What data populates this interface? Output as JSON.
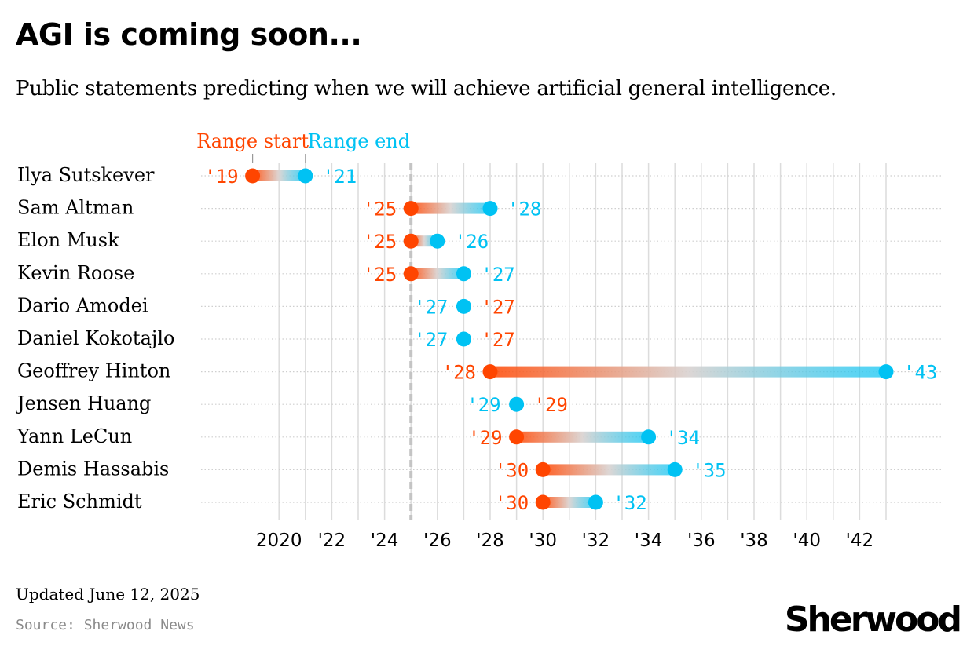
{
  "title": "AGI is coming soon...",
  "subtitle": "Public statements predicting when we will achieve artificial general intelligence.",
  "footer": {
    "updated": "Updated June 12, 2025",
    "source": "Source: Sherwood News",
    "logo": "Sherwood"
  },
  "colors": {
    "range_start": "#ff4500",
    "range_end": "#00c2f3",
    "grid": "#dcdcdc",
    "row_guide": "#cfcfcf",
    "current_line": "#c4c4c4"
  },
  "chart_data": {
    "type": "dumbbell",
    "legend": {
      "start_label": "Range start",
      "end_label": "Range end"
    },
    "x_domain": [
      2018,
      2044
    ],
    "current_year_marker": 2025,
    "grid_years": [
      2020,
      2021,
      2022,
      2023,
      2024,
      2025,
      2026,
      2027,
      2028,
      2029,
      2030,
      2031,
      2032,
      2033,
      2034,
      2035,
      2036,
      2037,
      2038,
      2039,
      2040,
      2041,
      2042,
      2043
    ],
    "ticks": [
      {
        "year": 2020,
        "label": "2020"
      },
      {
        "year": 2022,
        "label": "'22"
      },
      {
        "year": 2024,
        "label": "'24"
      },
      {
        "year": 2026,
        "label": "'26"
      },
      {
        "year": 2028,
        "label": "'28"
      },
      {
        "year": 2030,
        "label": "'30"
      },
      {
        "year": 2032,
        "label": "'32"
      },
      {
        "year": 2034,
        "label": "'34"
      },
      {
        "year": 2036,
        "label": "'36"
      },
      {
        "year": 2038,
        "label": "'38"
      },
      {
        "year": 2040,
        "label": "'40"
      },
      {
        "year": 2042,
        "label": "'42"
      }
    ],
    "rows": [
      {
        "name": "Ilya Sutskever",
        "start": 2019,
        "end": 2021,
        "start_label": "'19",
        "end_label": "'21"
      },
      {
        "name": "Sam Altman",
        "start": 2025,
        "end": 2028,
        "start_label": "'25",
        "end_label": "'28"
      },
      {
        "name": "Elon Musk",
        "start": 2025,
        "end": 2026,
        "start_label": "'25",
        "end_label": "'26"
      },
      {
        "name": "Kevin Roose",
        "start": 2025,
        "end": 2027,
        "start_label": "'25",
        "end_label": "'27"
      },
      {
        "name": "Dario Amodei",
        "start": 2027,
        "end": 2027,
        "start_label": "'27",
        "end_label": "'27"
      },
      {
        "name": "Daniel Kokotajlo",
        "start": 2027,
        "end": 2027,
        "start_label": "'27",
        "end_label": "'27"
      },
      {
        "name": "Geoffrey Hinton",
        "start": 2028,
        "end": 2043,
        "start_label": "'28",
        "end_label": "'43"
      },
      {
        "name": "Jensen Huang",
        "start": 2029,
        "end": 2029,
        "start_label": "'29",
        "end_label": "'29"
      },
      {
        "name": "Yann LeCun",
        "start": 2029,
        "end": 2034,
        "start_label": "'29",
        "end_label": "'34"
      },
      {
        "name": "Demis Hassabis",
        "start": 2030,
        "end": 2035,
        "start_label": "'30",
        "end_label": "'35"
      },
      {
        "name": "Eric Schmidt",
        "start": 2030,
        "end": 2032,
        "start_label": "'30",
        "end_label": "'32"
      }
    ]
  }
}
